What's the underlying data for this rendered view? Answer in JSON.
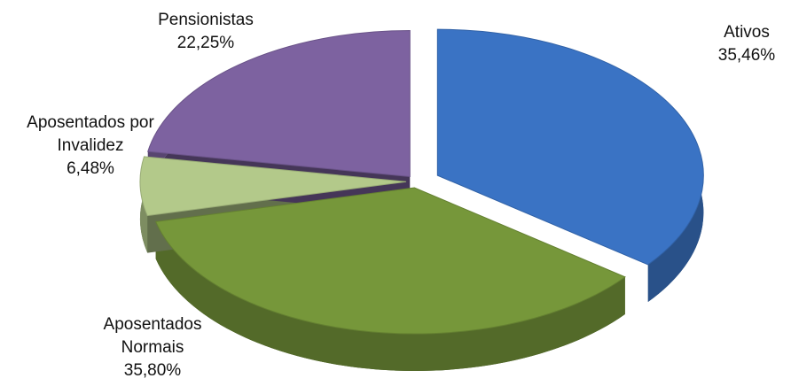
{
  "chart_data": {
    "type": "pie",
    "categories": [
      "Ativos",
      "Aposentados Normais",
      "Aposentados por Invalidez",
      "Pensionistas"
    ],
    "values": [
      35.46,
      35.8,
      6.48,
      22.25
    ],
    "value_labels": [
      "35,46%",
      "35,80%",
      "6,48%",
      "22,25%"
    ],
    "colors": [
      "#3a73c4",
      "#76973a",
      "#b3c98a",
      "#7d62a0"
    ]
  }
}
